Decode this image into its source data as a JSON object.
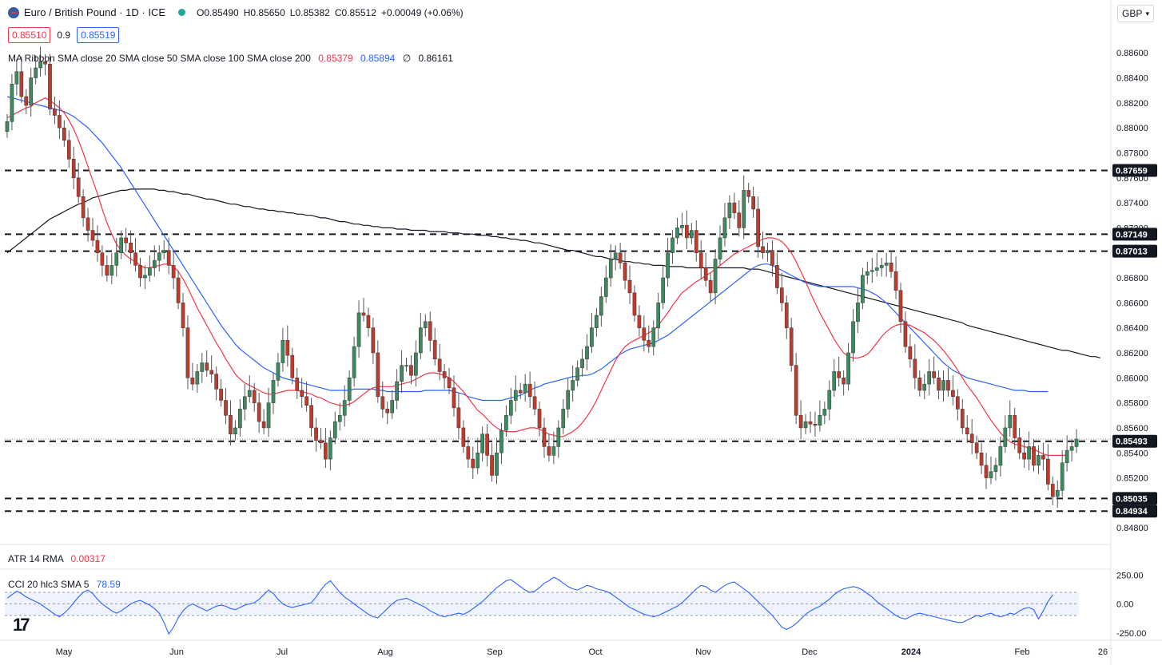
{
  "header": {
    "symbol": "Euro / British Pound · 1D · ICE",
    "open": "O0.85490",
    "high": "H0.85650",
    "low": "L0.85382",
    "close": "C0.85512",
    "change": "+0.00049 (+0.06%)",
    "sell_price": "0.85510",
    "spread": "0.9",
    "buy_price": "0.85519"
  },
  "currency_select": {
    "label": "GBP",
    "icon": "chevron-down-icon"
  },
  "ma_ribbon": {
    "label": "MA Ribbon SMA close 20 SMA close 50 SMA close 100 SMA close 200",
    "v1": "0.85379",
    "v2": "0.85894",
    "v3": "∅",
    "v4": "0.86161"
  },
  "atr": {
    "label": "ATR 14 RMA",
    "value": "0.00317"
  },
  "cci": {
    "label": "CCI 20 hlc3 SMA 5",
    "value": "78.59"
  },
  "colors": {
    "up": "#26a69a",
    "down": "#ef5350",
    "up_candle": "#3d8a5e",
    "down_candle": "#c0392b",
    "sma20": "#f23645",
    "sma50": "#2962ff",
    "sma200": "#131722",
    "cci": "#2962ff",
    "level_box": "#131722"
  },
  "chart_data": {
    "type": "candlestick",
    "title": "Euro / British Pound · 1D · ICE",
    "x_ticks": [
      "May",
      "Jun",
      "Jul",
      "Aug",
      "Sep",
      "Oct",
      "Nov",
      "Dec",
      "2024",
      "Feb",
      "26"
    ],
    "y_ticks": [
      "0.84800",
      "0.85200",
      "0.85400",
      "0.85600",
      "0.85800",
      "0.86000",
      "0.86200",
      "0.86400",
      "0.86600",
      "0.86800",
      "0.87000",
      "0.87200",
      "0.87400",
      "0.87600",
      "0.87800",
      "0.88000",
      "0.88200",
      "0.88400",
      "0.88600"
    ],
    "ylim": [
      0.8468,
      0.8878
    ],
    "horizontal_levels": [
      0.87659,
      0.87149,
      0.87013,
      0.85493,
      0.85035,
      0.84934
    ],
    "level_labels": [
      "0.87659",
      "0.87149",
      "0.87013",
      "0.85493",
      "0.85035",
      "0.84934"
    ],
    "closes": [
      0.8805,
      0.8835,
      0.8845,
      0.8825,
      0.8818,
      0.884,
      0.8848,
      0.8853,
      0.8851,
      0.8815,
      0.881,
      0.88,
      0.879,
      0.8775,
      0.876,
      0.8745,
      0.8728,
      0.8718,
      0.871,
      0.87,
      0.869,
      0.8682,
      0.869,
      0.87,
      0.8712,
      0.8708,
      0.87,
      0.869,
      0.868,
      0.8682,
      0.8688,
      0.8694,
      0.87,
      0.8702,
      0.869,
      0.868,
      0.866,
      0.864,
      0.86,
      0.8595,
      0.8605,
      0.8612,
      0.8606,
      0.8603,
      0.8591,
      0.8582,
      0.857,
      0.8555,
      0.856,
      0.8575,
      0.8585,
      0.859,
      0.858,
      0.8565,
      0.856,
      0.858,
      0.8598,
      0.8612,
      0.863,
      0.8618,
      0.86,
      0.859,
      0.8585,
      0.8578,
      0.856,
      0.855,
      0.8548,
      0.8535,
      0.8552,
      0.8565,
      0.857,
      0.8582,
      0.86,
      0.8625,
      0.8652,
      0.865,
      0.864,
      0.862,
      0.8585,
      0.8575,
      0.8572,
      0.8582,
      0.8597,
      0.861,
      0.861,
      0.8602,
      0.862,
      0.864,
      0.8645,
      0.863,
      0.8615,
      0.8605,
      0.86,
      0.8592,
      0.8576,
      0.856,
      0.8545,
      0.8535,
      0.8528,
      0.854,
      0.8555,
      0.8538,
      0.8522,
      0.854,
      0.8558,
      0.857,
      0.8582,
      0.859,
      0.8588,
      0.8595,
      0.8585,
      0.8575,
      0.856,
      0.8545,
      0.8538,
      0.8545,
      0.856,
      0.8575,
      0.859,
      0.8598,
      0.8608,
      0.8615,
      0.8625,
      0.864,
      0.865,
      0.8665,
      0.868,
      0.8695,
      0.87,
      0.8692,
      0.8678,
      0.8668,
      0.865,
      0.864,
      0.863,
      0.8625,
      0.864,
      0.866,
      0.868,
      0.87,
      0.8712,
      0.872,
      0.8722,
      0.8712,
      0.8718,
      0.87,
      0.8688,
      0.8678,
      0.8668,
      0.8695,
      0.8712,
      0.8728,
      0.874,
      0.8732,
      0.872,
      0.875,
      0.8745,
      0.8735,
      0.8705,
      0.87,
      0.8702,
      0.869,
      0.8672,
      0.866,
      0.864,
      0.861,
      0.857,
      0.856,
      0.8565,
      0.8563,
      0.8562,
      0.857,
      0.8575,
      0.859,
      0.8605,
      0.86,
      0.8595,
      0.862,
      0.8645,
      0.866,
      0.8682,
      0.8685,
      0.8686,
      0.8688,
      0.869,
      0.8692,
      0.8685,
      0.867,
      0.8645,
      0.8625,
      0.8615,
      0.86,
      0.859,
      0.8595,
      0.8605,
      0.86,
      0.859,
      0.8598,
      0.859,
      0.8585,
      0.8575,
      0.856,
      0.8555,
      0.8548,
      0.854,
      0.853,
      0.852,
      0.8525,
      0.853,
      0.8545,
      0.856,
      0.857,
      0.8552,
      0.854,
      0.8535,
      0.8545,
      0.853,
      0.8538,
      0.8535,
      0.8515,
      0.8505,
      0.851,
      0.8532,
      0.8542,
      0.8545,
      0.8551
    ],
    "sma20": [
      0.8808,
      0.881,
      0.8812,
      0.8814,
      0.8816,
      0.8817,
      0.882,
      0.8822,
      0.8824,
      0.8822,
      0.8819,
      0.8816,
      0.8812,
      0.8806,
      0.8799,
      0.879,
      0.878,
      0.8769,
      0.8758,
      0.8747,
      0.8735,
      0.8724,
      0.8715,
      0.8707,
      0.8702,
      0.8698,
      0.8695,
      0.8693,
      0.869,
      0.8688,
      0.8688,
      0.8689,
      0.869,
      0.8691,
      0.8691,
      0.8689,
      0.8685,
      0.8679,
      0.8672,
      0.8664,
      0.8656,
      0.8649,
      0.8642,
      0.8635,
      0.8628,
      0.8622,
      0.8615,
      0.8609,
      0.8603,
      0.8599,
      0.8596,
      0.8594,
      0.8592,
      0.859,
      0.8588,
      0.8587,
      0.8587,
      0.8588,
      0.8589,
      0.859,
      0.859,
      0.859,
      0.8589,
      0.8588,
      0.8587,
      0.8585,
      0.8584,
      0.8582,
      0.858,
      0.8579,
      0.8578,
      0.8578,
      0.8579,
      0.8581,
      0.8584,
      0.8587,
      0.859,
      0.8592,
      0.8593,
      0.8593,
      0.8593,
      0.8593,
      0.8594,
      0.8595,
      0.8596,
      0.8597,
      0.8599,
      0.8601,
      0.8603,
      0.8604,
      0.8604,
      0.8603,
      0.8602,
      0.86,
      0.8597,
      0.8593,
      0.8589,
      0.8584,
      0.8579,
      0.8574,
      0.8571,
      0.8567,
      0.8563,
      0.856,
      0.8558,
      0.8557,
      0.8557,
      0.8557,
      0.8558,
      0.8559,
      0.856,
      0.856,
      0.8559,
      0.8557,
      0.8555,
      0.8554,
      0.8553,
      0.8553,
      0.8555,
      0.8557,
      0.856,
      0.8564,
      0.8569,
      0.8575,
      0.8582,
      0.859,
      0.8598,
      0.8606,
      0.8614,
      0.862,
      0.8625,
      0.8628,
      0.863,
      0.8632,
      0.8634,
      0.8636,
      0.8638,
      0.8642,
      0.8647,
      0.8652,
      0.8658,
      0.8663,
      0.8668,
      0.8671,
      0.8674,
      0.8677,
      0.8679,
      0.8682,
      0.8684,
      0.8687,
      0.869,
      0.8693,
      0.8696,
      0.8699,
      0.8701,
      0.8703,
      0.8705,
      0.8707,
      0.8709,
      0.8711,
      0.8712,
      0.8712,
      0.8711,
      0.8709,
      0.8705,
      0.87,
      0.8693,
      0.8685,
      0.8677,
      0.8668,
      0.866,
      0.8652,
      0.8645,
      0.8638,
      0.8631,
      0.8625,
      0.862,
      0.8617,
      0.8616,
      0.8616,
      0.8617,
      0.8619,
      0.8623,
      0.8628,
      0.8633,
      0.8637,
      0.864,
      0.8642,
      0.8643,
      0.8643,
      0.8642,
      0.864,
      0.8638,
      0.8636,
      0.8633,
      0.863,
      0.8626,
      0.8622,
      0.8617,
      0.8612,
      0.8606,
      0.86,
      0.8594,
      0.8589,
      0.8584,
      0.8578,
      0.8572,
      0.8566,
      0.8561,
      0.8556,
      0.8552,
      0.8549,
      0.8547,
      0.8546,
      0.8545,
      0.8544,
      0.8543,
      0.8541,
      0.8539,
      0.8538,
      0.8538,
      0.8538,
      0.8538,
      0.8538
    ],
    "sma50": [
      0.8825,
      0.8824,
      0.8823,
      0.8822,
      0.8821,
      0.882,
      0.8819,
      0.8818,
      0.8817,
      0.8816,
      0.8815,
      0.8814,
      0.8813,
      0.8811,
      0.8809,
      0.8806,
      0.8803,
      0.88,
      0.8796,
      0.8792,
      0.8788,
      0.8783,
      0.8778,
      0.8773,
      0.8768,
      0.8762,
      0.8756,
      0.875,
      0.8744,
      0.8738,
      0.8732,
      0.8726,
      0.872,
      0.8714,
      0.8708,
      0.8702,
      0.8696,
      0.869,
      0.8684,
      0.8678,
      0.8672,
      0.8666,
      0.866,
      0.8654,
      0.8648,
      0.8642,
      0.8637,
      0.8632,
      0.8627,
      0.8623,
      0.862,
      0.8617,
      0.8614,
      0.8611,
      0.8608,
      0.8606,
      0.8604,
      0.8602,
      0.86,
      0.8599,
      0.8598,
      0.8597,
      0.8596,
      0.8595,
      0.8594,
      0.8593,
      0.8592,
      0.8591,
      0.859,
      0.859,
      0.859,
      0.859,
      0.859,
      0.8591,
      0.8591,
      0.8591,
      0.8591,
      0.8591,
      0.859,
      0.859,
      0.8589,
      0.8589,
      0.8589,
      0.8589,
      0.8589,
      0.8589,
      0.8589,
      0.8589,
      0.859,
      0.859,
      0.859,
      0.859,
      0.859,
      0.859,
      0.8589,
      0.8588,
      0.8587,
      0.8585,
      0.8584,
      0.8583,
      0.8582,
      0.8582,
      0.8582,
      0.8582,
      0.8582,
      0.8583,
      0.8584,
      0.8585,
      0.8586,
      0.8588,
      0.859,
      0.8592,
      0.8593,
      0.8595,
      0.8596,
      0.8597,
      0.8598,
      0.8599,
      0.86,
      0.8601,
      0.8601,
      0.8602,
      0.8602,
      0.8603,
      0.8605,
      0.8607,
      0.861,
      0.8613,
      0.8616,
      0.8619,
      0.8621,
      0.8623,
      0.8624,
      0.8625,
      0.8626,
      0.8627,
      0.8628,
      0.863,
      0.8632,
      0.8634,
      0.8637,
      0.864,
      0.8643,
      0.8646,
      0.8649,
      0.8652,
      0.8655,
      0.8658,
      0.8661,
      0.8664,
      0.8667,
      0.867,
      0.8673,
      0.8676,
      0.8679,
      0.8682,
      0.8685,
      0.8688,
      0.869,
      0.8691,
      0.8691,
      0.869,
      0.8688,
      0.8686,
      0.8684,
      0.8682,
      0.868,
      0.8678,
      0.8676,
      0.8675,
      0.8674,
      0.8673,
      0.8673,
      0.8673,
      0.8673,
      0.8673,
      0.8673,
      0.8673,
      0.8673,
      0.8672,
      0.8671,
      0.867,
      0.8668,
      0.8666,
      0.8663,
      0.866,
      0.8656,
      0.8652,
      0.8648,
      0.8644,
      0.864,
      0.8636,
      0.8632,
      0.8628,
      0.8624,
      0.862,
      0.8616,
      0.8612,
      0.8609,
      0.8606,
      0.8604,
      0.8602,
      0.86,
      0.8599,
      0.8598,
      0.8597,
      0.8596,
      0.8595,
      0.8594,
      0.8593,
      0.8592,
      0.8591,
      0.859,
      0.859,
      0.859,
      0.8589,
      0.8589,
      0.8589,
      0.8589,
      0.8589
    ],
    "sma200": [
      0.87,
      0.8703,
      0.8706,
      0.8709,
      0.8712,
      0.8715,
      0.8718,
      0.8721,
      0.8724,
      0.8727,
      0.8729,
      0.8731,
      0.8733,
      0.8735,
      0.8737,
      0.8739,
      0.874,
      0.8742,
      0.8744,
      0.8745,
      0.8746,
      0.8747,
      0.8748,
      0.8749,
      0.875,
      0.875,
      0.8751,
      0.8751,
      0.8751,
      0.8751,
      0.8751,
      0.8751,
      0.875,
      0.875,
      0.8749,
      0.8749,
      0.8748,
      0.8747,
      0.8747,
      0.8746,
      0.8745,
      0.8744,
      0.8743,
      0.8743,
      0.8742,
      0.8741,
      0.874,
      0.8739,
      0.8739,
      0.8738,
      0.8737,
      0.8737,
      0.8736,
      0.8735,
      0.8735,
      0.8734,
      0.8734,
      0.8733,
      0.8733,
      0.8732,
      0.8732,
      0.8731,
      0.8731,
      0.873,
      0.873,
      0.8729,
      0.8728,
      0.8728,
      0.8727,
      0.8726,
      0.8725,
      0.8725,
      0.8724,
      0.8723,
      0.8723,
      0.8722,
      0.8722,
      0.8721,
      0.8721,
      0.872,
      0.872,
      0.872,
      0.8719,
      0.8719,
      0.8719,
      0.8718,
      0.8718,
      0.8718,
      0.8718,
      0.8717,
      0.8717,
      0.8717,
      0.8717,
      0.8716,
      0.8716,
      0.8716,
      0.8715,
      0.8715,
      0.8715,
      0.8714,
      0.8714,
      0.8714,
      0.8713,
      0.8713,
      0.8712,
      0.8712,
      0.8711,
      0.8711,
      0.871,
      0.871,
      0.8709,
      0.8708,
      0.8708,
      0.8707,
      0.8706,
      0.8705,
      0.8704,
      0.8703,
      0.8702,
      0.8702,
      0.8701,
      0.87,
      0.8699,
      0.8698,
      0.8697,
      0.8697,
      0.8696,
      0.8695,
      0.8695,
      0.8694,
      0.8693,
      0.8693,
      0.8692,
      0.8692,
      0.8691,
      0.8691,
      0.869,
      0.869,
      0.869,
      0.8689,
      0.8689,
      0.8689,
      0.8689,
      0.8688,
      0.8688,
      0.8688,
      0.8688,
      0.8688,
      0.8688,
      0.8688,
      0.8688,
      0.8688,
      0.8688,
      0.8688,
      0.8688,
      0.8688,
      0.8687,
      0.8687,
      0.8687,
      0.8686,
      0.8685,
      0.8684,
      0.8683,
      0.8682,
      0.8681,
      0.868,
      0.8679,
      0.8678,
      0.8677,
      0.8676,
      0.8675,
      0.8674,
      0.8673,
      0.8672,
      0.8671,
      0.867,
      0.8669,
      0.8668,
      0.8667,
      0.8666,
      0.8665,
      0.8664,
      0.8663,
      0.8662,
      0.8661,
      0.866,
      0.8659,
      0.8658,
      0.8657,
      0.8656,
      0.8655,
      0.8654,
      0.8653,
      0.8652,
      0.8651,
      0.865,
      0.8649,
      0.8648,
      0.8647,
      0.8646,
      0.8645,
      0.8644,
      0.8642,
      0.8641,
      0.864,
      0.8639,
      0.8638,
      0.8637,
      0.8636,
      0.8635,
      0.8634,
      0.8633,
      0.8632,
      0.8631,
      0.863,
      0.8629,
      0.8628,
      0.8627,
      0.8626,
      0.8625,
      0.8624,
      0.8623,
      0.8622,
      0.8622,
      0.8621,
      0.862,
      0.8619,
      0.8618,
      0.8617,
      0.8617,
      0.8616
    ],
    "cci_ticks": [
      "250.00",
      "0.00",
      "-250.00"
    ],
    "cci_ylim": [
      -300,
      300
    ],
    "cci_band": [
      -100,
      100
    ],
    "cci": [
      50,
      80,
      110,
      90,
      60,
      40,
      20,
      0,
      -30,
      -60,
      -90,
      -110,
      -80,
      -40,
      10,
      60,
      100,
      120,
      90,
      40,
      0,
      -30,
      -60,
      -80,
      -60,
      -30,
      0,
      20,
      30,
      10,
      -10,
      -40,
      -80,
      -160,
      -260,
      -200,
      -120,
      -60,
      -20,
      0,
      -20,
      -40,
      -60,
      -40,
      -20,
      -10,
      -20,
      -40,
      -50,
      -30,
      -10,
      0,
      10,
      40,
      80,
      120,
      90,
      40,
      0,
      -20,
      -30,
      -20,
      -10,
      0,
      10,
      60,
      120,
      170,
      200,
      150,
      100,
      60,
      30,
      0,
      -30,
      -60,
      -90,
      -110,
      -120,
      -80,
      -40,
      0,
      30,
      40,
      50,
      30,
      10,
      -10,
      -30,
      -60,
      -80,
      -100,
      -110,
      -100,
      -90,
      -80,
      -90,
      -70,
      -40,
      -10,
      20,
      60,
      100,
      140,
      170,
      200,
      210,
      180,
      150,
      120,
      100,
      110,
      140,
      180,
      200,
      230,
      210,
      180,
      150,
      130,
      120,
      140,
      160,
      150,
      130,
      120,
      110,
      90,
      60,
      30,
      0,
      -30,
      -50,
      -70,
      -90,
      -100,
      -110,
      -100,
      -80,
      -60,
      -40,
      -20,
      10,
      50,
      90,
      130,
      160,
      150,
      120,
      100,
      130,
      160,
      180,
      190,
      160,
      130,
      100,
      60,
      20,
      -20,
      -60,
      -100,
      -150,
      -200,
      -220,
      -200,
      -170,
      -130,
      -90,
      -60,
      -40,
      -20,
      10,
      40,
      80,
      110,
      130,
      140,
      150,
      140,
      120,
      90,
      60,
      20,
      -10,
      -40,
      -70,
      -100,
      -120,
      -130,
      -110,
      -90,
      -80,
      -90,
      -100,
      -110,
      -120,
      -130,
      -140,
      -150,
      -160,
      -160,
      -140,
      -120,
      -100,
      -110,
      -90,
      -80,
      -100,
      -110,
      -100,
      -80,
      -90,
      -60,
      -40,
      -30,
      -50,
      -130,
      -60,
      20,
      79
    ]
  }
}
